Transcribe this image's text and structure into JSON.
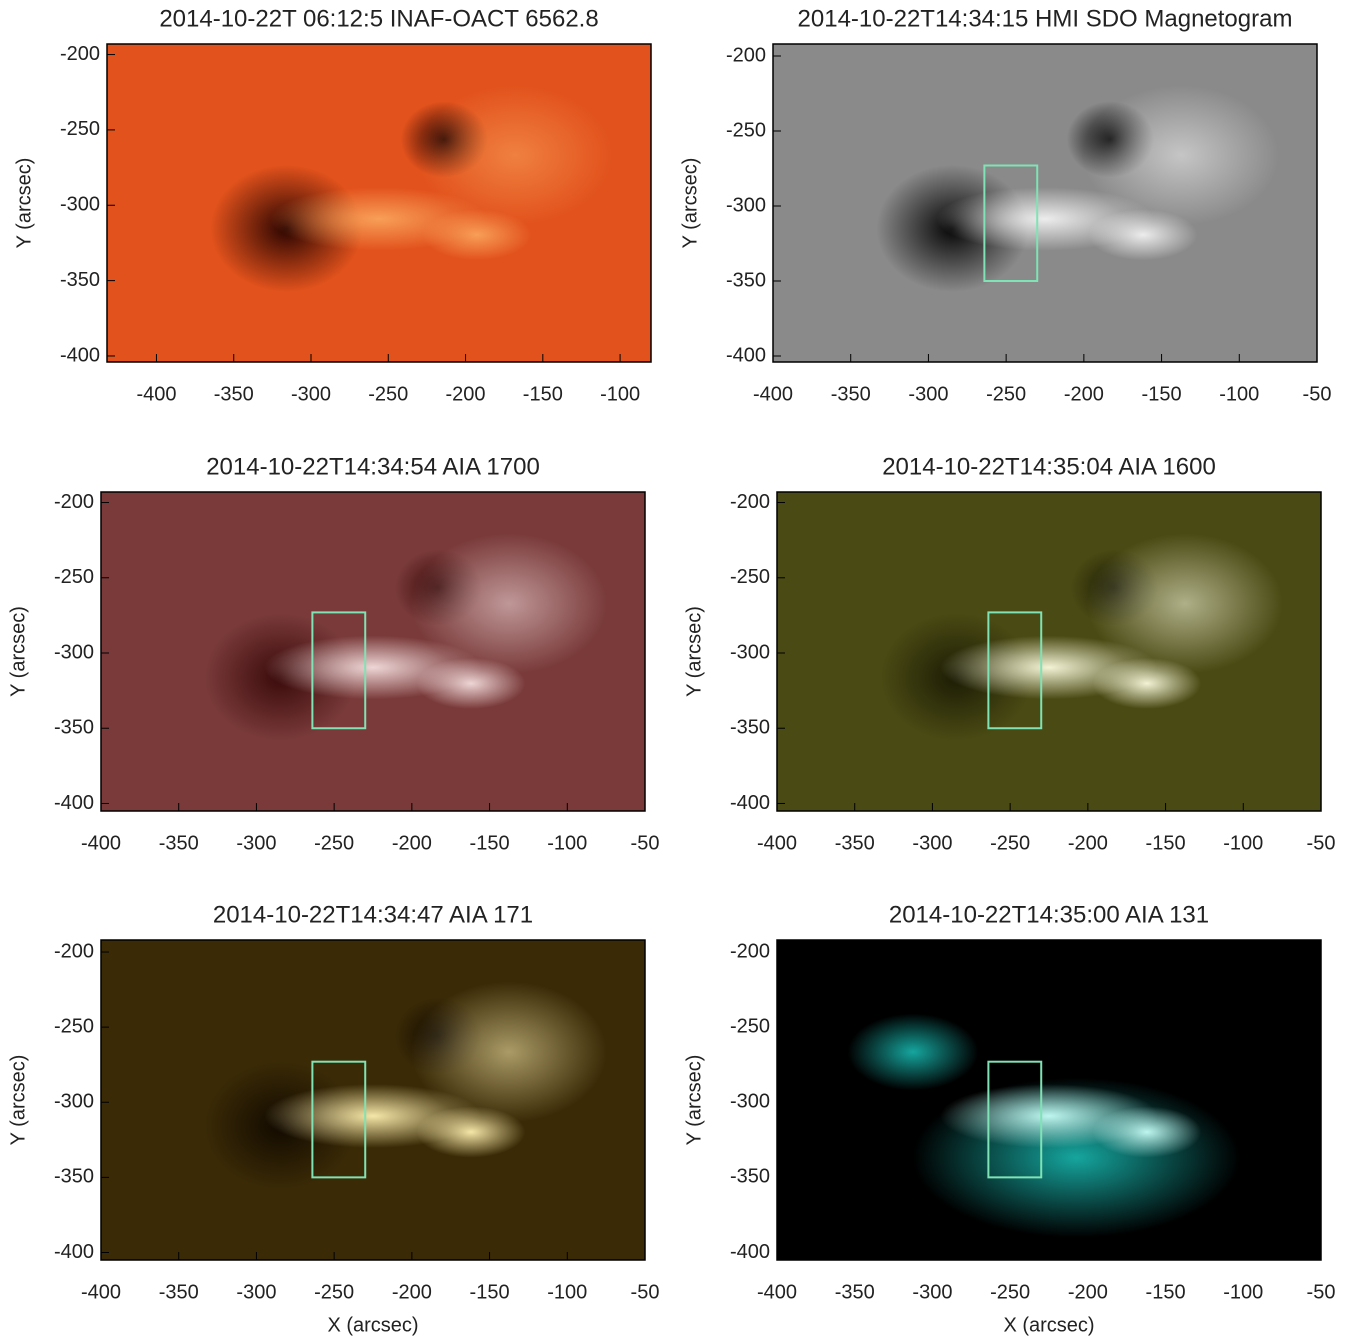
{
  "chart_data": [
    {
      "type": "image",
      "title": "2014-10-22T 06:12:5 INAF-OACT 6562.8",
      "ylabel": "Y (arcsec)",
      "xlim": [
        -432,
        -80
      ],
      "ylim": [
        -404,
        -193
      ],
      "xticks": [
        -400,
        -350,
        -300,
        -250,
        -200,
        -150,
        -100
      ],
      "yticks": [
        -200,
        -250,
        -300,
        -350,
        -400
      ],
      "color": "#e2521c",
      "highlight": "#f9a35a",
      "dark": "#2a0400"
    },
    {
      "type": "image",
      "title": "2014-10-22T14:34:15 HMI SDO Magnetogram",
      "ylabel": "Y (arcsec)",
      "xlim": [
        -400,
        -50
      ],
      "ylim": [
        -404,
        -192
      ],
      "xticks": [
        -400,
        -350,
        -300,
        -250,
        -200,
        -150,
        -100,
        -50
      ],
      "yticks": [
        -200,
        -250,
        -300,
        -350,
        -400
      ],
      "color": "#8a8a8a",
      "highlight": "#f2f2f2",
      "dark": "#050505",
      "box": {
        "x": [
          -264,
          -230
        ],
        "y": [
          -350,
          -273
        ],
        "color": "#7fe3b5"
      }
    },
    {
      "type": "image",
      "title": "2014-10-22T14:34:54 AIA 1700",
      "ylabel": "Y (arcsec)",
      "xlim": [
        -400,
        -50
      ],
      "ylim": [
        -405,
        -193
      ],
      "xticks": [
        -400,
        -350,
        -300,
        -250,
        -200,
        -150,
        -100,
        -50
      ],
      "yticks": [
        -200,
        -250,
        -300,
        -350,
        -400
      ],
      "color": "#7a3a3a",
      "highlight": "#f4dede",
      "dark": "#3a0a0a",
      "box": {
        "x": [
          -264,
          -230
        ],
        "y": [
          -350,
          -273
        ],
        "color": "#7fe3b5"
      }
    },
    {
      "type": "image",
      "title": "2014-10-22T14:35:04 AIA 1600",
      "ylabel": "Y (arcsec)",
      "xlim": [
        -400,
        -50
      ],
      "ylim": [
        -405,
        -193
      ],
      "xticks": [
        -400,
        -350,
        -300,
        -250,
        -200,
        -150,
        -100,
        -50
      ],
      "yticks": [
        -200,
        -250,
        -300,
        -350,
        -400
      ],
      "color": "#4a4a14",
      "highlight": "#fcfce0",
      "dark": "#1c1c05",
      "box": {
        "x": [
          -264,
          -230
        ],
        "y": [
          -350,
          -273
        ],
        "color": "#7fe3b5"
      }
    },
    {
      "type": "image",
      "title": "2014-10-22T14:34:47 AIA 171",
      "xlabel": "X (arcsec)",
      "ylabel": "Y (arcsec)",
      "xlim": [
        -400,
        -50
      ],
      "ylim": [
        -405,
        -192
      ],
      "xticks": [
        -400,
        -350,
        -300,
        -250,
        -200,
        -150,
        -100,
        -50
      ],
      "yticks": [
        -200,
        -250,
        -300,
        -350,
        -400
      ],
      "color": "#3a2a06",
      "highlight": "#fff0b0",
      "dark": "#120a00",
      "box": {
        "x": [
          -264,
          -230
        ],
        "y": [
          -350,
          -273
        ],
        "color": "#7fe3b5"
      }
    },
    {
      "type": "image",
      "title": "2014-10-22T14:35:00 AIA 131",
      "xlabel": "X (arcsec)",
      "ylabel": "Y (arcsec)",
      "xlim": [
        -400,
        -50
      ],
      "ylim": [
        -405,
        -192
      ],
      "xticks": [
        -400,
        -350,
        -300,
        -250,
        -200,
        -150,
        -100,
        -50
      ],
      "yticks": [
        -200,
        -250,
        -300,
        -350,
        -400
      ],
      "color": "#000000",
      "highlight": "#c8fff8",
      "dark": "#000000",
      "glow": "#18b8b0",
      "box": {
        "x": [
          -264,
          -230
        ],
        "y": [
          -350,
          -273
        ],
        "color": "#7fe3b5"
      }
    }
  ]
}
